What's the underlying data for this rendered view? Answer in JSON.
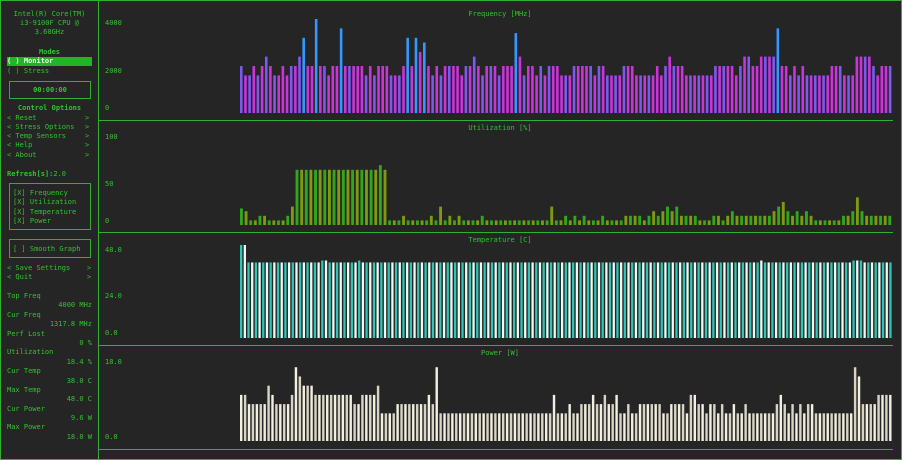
{
  "sidebar": {
    "cpu_name": [
      "Intel(R) Core(TM)",
      "i3-9100F CPU @",
      "3.60GHz"
    ],
    "modes_title": "Modes",
    "mode_monitor": "( ) Monitor",
    "mode_stress": "( ) Stress",
    "timer": "00:00:00",
    "control_title": "Control Options",
    "options": [
      "< Reset",
      "< Stress Options",
      "< Temp Sensors",
      "< Help",
      "< About"
    ],
    "option_arrow": ">",
    "refresh_label": "Refresh[s]:",
    "refresh_value": "2.0",
    "checks": [
      "[X] Frequency",
      "[X] Utilization",
      "[X] Temperature",
      "[X] Power"
    ],
    "smooth": "[ ] Smooth Graph",
    "save": "< Save Settings",
    "quit": "< Quit",
    "stats": [
      {
        "label": "Top Freq",
        "value": "4000 MHz"
      },
      {
        "label": "Cur Freq",
        "value": "1317.8 MHz"
      },
      {
        "label": "Perf Lost",
        "value": "0 %"
      },
      {
        "label": "Utilization",
        "value": "18.4 %"
      },
      {
        "label": "Cur Temp",
        "value": "38.0 C"
      },
      {
        "label": "Max Temp",
        "value": "48.0 C"
      },
      {
        "label": "Cur Power",
        "value": "9.6 W"
      },
      {
        "label": "Max Power",
        "value": "18.0 W"
      }
    ]
  },
  "colors": {
    "accent": "#2fc52f",
    "freq_base": "#7b5af0",
    "freq_alt1": "#cc33dd",
    "freq_alt2": "#3399ff",
    "util_a": "#2fa81e",
    "util_b": "#7f9a10",
    "temp_a": "#2ec4b6",
    "temp_b": "#f0f8f0",
    "power_a": "#f2eee0",
    "power_b": "#d8d4c4"
  },
  "chart_data": [
    {
      "type": "bar",
      "title": "Frequency [MHz]",
      "ytick_labels": [
        "4000",
        "2000",
        "0"
      ],
      "ylim": [
        0,
        4000
      ],
      "values": [
        2000,
        1600,
        1600,
        2000,
        1600,
        2000,
        2400,
        2000,
        1600,
        1600,
        2000,
        1600,
        2000,
        2000,
        2400,
        3200,
        2000,
        2000,
        4000,
        2000,
        2000,
        1600,
        2000,
        2000,
        3600,
        2000,
        2000,
        2000,
        2000,
        2000,
        1600,
        2000,
        1600,
        2000,
        2000,
        2000,
        1600,
        1600,
        1600,
        2000,
        3200,
        2000,
        3200,
        2600,
        3000,
        2000,
        1600,
        2000,
        1600,
        2000,
        2000,
        2000,
        2000,
        1600,
        2000,
        2000,
        2400,
        2000,
        1600,
        2000,
        2000,
        2000,
        1600,
        2000,
        2000,
        2000,
        3400,
        2400,
        1600,
        2000,
        2000,
        1600,
        2000,
        1600,
        2000,
        2000,
        2000,
        1600,
        1600,
        1600,
        2000,
        2000,
        2000,
        2000,
        2000,
        1600,
        2000,
        2000,
        1600,
        1600,
        1600,
        1600,
        2000,
        2000,
        2000,
        1600,
        1600,
        1600,
        1600,
        1600,
        2000,
        1600,
        2000,
        2400,
        2000,
        2000,
        2000,
        1600,
        1600,
        1600,
        1600,
        1600,
        1600,
        1600,
        2000,
        2000,
        2000,
        2000,
        2000,
        1600,
        2000,
        2400,
        2400,
        2000,
        2000,
        2400,
        2400,
        2400,
        2400,
        3600,
        2000,
        2000,
        1600,
        2000,
        1600,
        2000,
        1600,
        1600,
        1600,
        1600,
        1600,
        1600,
        2000,
        2000,
        2000,
        1600,
        1600,
        1600,
        2400,
        2400,
        2400,
        2400,
        2000,
        1600,
        2000,
        2000,
        2000
      ]
    },
    {
      "type": "bar",
      "title": "Utilization [%]",
      "ytick_labels": [
        "100",
        "50",
        "0"
      ],
      "ylim": [
        0,
        100
      ],
      "values": [
        18,
        15,
        5,
        5,
        10,
        10,
        5,
        5,
        5,
        5,
        10,
        20,
        60,
        60,
        60,
        60,
        60,
        60,
        60,
        60,
        60,
        60,
        60,
        60,
        60,
        60,
        60,
        60,
        60,
        60,
        65,
        60,
        5,
        5,
        5,
        10,
        5,
        5,
        5,
        5,
        5,
        10,
        5,
        20,
        5,
        10,
        5,
        10,
        5,
        5,
        5,
        5,
        10,
        5,
        5,
        5,
        5,
        5,
        5,
        5,
        5,
        5,
        5,
        5,
        5,
        5,
        5,
        20,
        5,
        5,
        10,
        5,
        10,
        5,
        10,
        5,
        5,
        5,
        10,
        5,
        5,
        5,
        5,
        10,
        10,
        10,
        10,
        5,
        10,
        15,
        10,
        15,
        20,
        15,
        20,
        10,
        10,
        10,
        10,
        5,
        5,
        5,
        10,
        10,
        5,
        10,
        15,
        10,
        10,
        10,
        10,
        10,
        10,
        10,
        10,
        15,
        20,
        25,
        15,
        10,
        15,
        10,
        15,
        10,
        5,
        5,
        5,
        5,
        5,
        5,
        10,
        10,
        15,
        30,
        15,
        10,
        10,
        10,
        10,
        10,
        10
      ]
    },
    {
      "type": "bar",
      "title": "Temperature [C]",
      "ytick_labels": [
        "48.0",
        "24.0",
        "0.0"
      ],
      "ylim": [
        0,
        48
      ],
      "values": [
        48,
        48,
        39,
        39,
        39,
        39,
        39,
        39,
        39,
        39,
        39,
        39,
        39,
        39,
        39,
        39,
        39,
        39,
        39,
        39,
        39,
        39,
        40,
        40,
        39,
        39,
        39,
        39,
        39,
        39,
        39,
        39,
        40,
        39,
        39,
        39,
        39,
        39,
        39,
        39,
        39,
        39,
        39,
        39,
        39,
        39,
        39,
        39,
        39,
        39,
        39,
        39,
        39,
        39,
        39,
        39,
        39,
        39,
        39,
        39,
        39,
        39,
        39,
        39,
        39,
        39,
        39,
        39,
        39,
        39,
        39,
        39,
        39,
        39,
        39,
        39,
        39,
        39,
        39,
        39,
        39,
        39,
        39,
        39,
        39,
        39,
        39,
        39,
        39,
        39,
        39,
        39,
        39,
        39,
        39,
        39,
        39,
        39,
        39,
        39,
        39,
        39,
        39,
        39,
        39,
        39,
        39,
        39,
        39,
        39,
        39,
        39,
        39,
        39,
        39,
        39,
        39,
        39,
        39,
        39,
        39,
        39,
        39,
        39,
        39,
        39,
        39,
        39,
        39,
        39,
        39,
        39,
        39,
        39,
        39,
        39,
        39,
        39,
        39,
        39,
        39,
        40,
        39,
        39,
        39,
        39,
        39,
        39,
        39,
        39,
        39,
        39,
        39,
        39,
        39,
        39,
        39,
        39,
        39,
        39,
        39,
        39,
        39,
        39,
        39,
        39,
        40,
        40,
        40,
        39,
        39,
        39,
        39,
        39,
        39,
        39,
        39
      ]
    },
    {
      "type": "bar",
      "title": "Power [W]",
      "ytick_labels": [
        "18.0",
        "0.0"
      ],
      "ylim": [
        0,
        18
      ],
      "values": [
        10,
        10,
        8,
        8,
        8,
        8,
        8,
        12,
        10,
        8,
        8,
        8,
        8,
        10,
        16,
        14,
        12,
        12,
        12,
        10,
        10,
        10,
        10,
        10,
        10,
        10,
        10,
        10,
        10,
        8,
        8,
        10,
        10,
        10,
        10,
        12,
        6,
        6,
        6,
        6,
        8,
        8,
        8,
        8,
        8,
        8,
        8,
        8,
        10,
        8,
        16,
        6,
        6,
        6,
        6,
        6,
        6,
        6,
        6,
        6,
        6,
        6,
        6,
        6,
        6,
        6,
        6,
        6,
        6,
        6,
        6,
        6,
        6,
        6,
        6,
        6,
        6,
        6,
        6,
        6,
        10,
        6,
        6,
        6,
        8,
        6,
        6,
        8,
        8,
        8,
        10,
        8,
        8,
        10,
        8,
        8,
        10,
        6,
        6,
        8,
        6,
        6,
        8,
        8,
        8,
        8,
        8,
        8,
        6,
        6,
        8,
        8,
        8,
        8,
        6,
        10,
        10,
        8,
        8,
        6,
        8,
        8,
        6,
        8,
        6,
        6,
        8,
        6,
        6,
        8,
        6,
        6,
        6,
        6,
        6,
        6,
        6,
        8,
        10,
        8,
        6,
        8,
        6,
        8,
        6,
        8,
        8,
        6,
        6,
        6,
        6,
        6,
        6,
        6,
        6,
        6,
        6,
        16,
        14,
        8,
        8,
        8,
        8,
        10,
        10,
        10,
        10
      ]
    }
  ]
}
